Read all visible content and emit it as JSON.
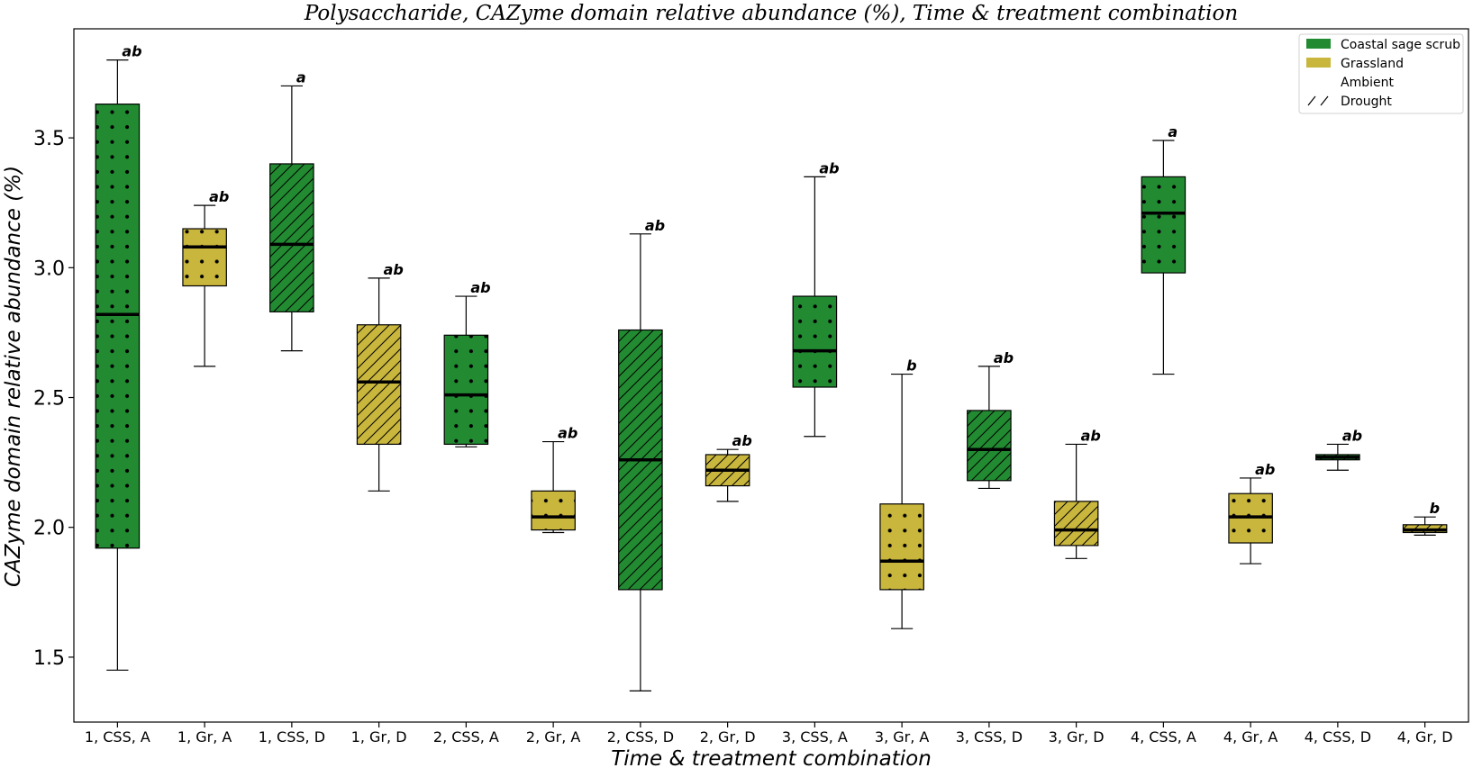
{
  "chart_data": {
    "type": "box",
    "title": "Polysaccharide, CAZyme domain relative abundance (%), Time & treatment combination",
    "xlabel": "Time & treatment combination",
    "ylabel": "CAZyme domain relative abundance (%)",
    "ylim": [
      1.25,
      3.92
    ],
    "yticks": [
      1.5,
      2.0,
      2.5,
      3.0,
      3.5
    ],
    "ytick_labels": [
      "1.5",
      "2.0",
      "2.5",
      "3.0",
      "3.5"
    ],
    "grid": false,
    "legend_position": "top-right",
    "legend": [
      {
        "label": "Coastal sage scrub",
        "kind": "fill",
        "color": "#228b32"
      },
      {
        "label": "Grassland",
        "kind": "fill",
        "color": "#c9b63d"
      },
      {
        "label": "Ambient",
        "kind": "none"
      },
      {
        "label": "Drought",
        "kind": "hatch"
      }
    ],
    "colors": {
      "css": "#228b32",
      "gr": "#c9b63d"
    },
    "categories": [
      "1, CSS, A",
      "1, Gr, A",
      "1, CSS, D",
      "1, Gr, D",
      "2, CSS, A",
      "2, Gr, A",
      "2, CSS, D",
      "2, Gr, D",
      "3, CSS, A",
      "3, Gr, A",
      "3, CSS, D",
      "3, Gr, D",
      "4, CSS, A",
      "4, Gr, A",
      "4, CSS, D",
      "4, Gr, D"
    ],
    "boxes": [
      {
        "vegetation": "css",
        "treatment": "ambient",
        "min": 1.45,
        "q1": 1.92,
        "median": 2.82,
        "q3": 3.63,
        "max": 3.8,
        "letter": "ab"
      },
      {
        "vegetation": "gr",
        "treatment": "ambient",
        "min": 2.62,
        "q1": 2.93,
        "median": 3.08,
        "q3": 3.15,
        "max": 3.24,
        "letter": "ab"
      },
      {
        "vegetation": "css",
        "treatment": "drought",
        "min": 2.68,
        "q1": 2.83,
        "median": 3.09,
        "q3": 3.4,
        "max": 3.7,
        "letter": "a"
      },
      {
        "vegetation": "gr",
        "treatment": "drought",
        "min": 2.14,
        "q1": 2.32,
        "median": 2.56,
        "q3": 2.78,
        "max": 2.96,
        "letter": "ab"
      },
      {
        "vegetation": "css",
        "treatment": "ambient",
        "min": 2.31,
        "q1": 2.32,
        "median": 2.51,
        "q3": 2.74,
        "max": 2.89,
        "letter": "ab"
      },
      {
        "vegetation": "gr",
        "treatment": "ambient",
        "min": 1.98,
        "q1": 1.99,
        "median": 2.04,
        "q3": 2.14,
        "max": 2.33,
        "letter": "ab"
      },
      {
        "vegetation": "css",
        "treatment": "drought",
        "min": 1.37,
        "q1": 1.76,
        "median": 2.26,
        "q3": 2.76,
        "max": 3.13,
        "letter": "ab"
      },
      {
        "vegetation": "gr",
        "treatment": "drought",
        "min": 2.1,
        "q1": 2.16,
        "median": 2.22,
        "q3": 2.28,
        "max": 2.3,
        "letter": "ab"
      },
      {
        "vegetation": "css",
        "treatment": "ambient",
        "min": 2.35,
        "q1": 2.54,
        "median": 2.68,
        "q3": 2.89,
        "max": 3.35,
        "letter": "ab"
      },
      {
        "vegetation": "gr",
        "treatment": "ambient",
        "min": 1.61,
        "q1": 1.76,
        "median": 1.87,
        "q3": 2.09,
        "max": 2.59,
        "letter": "b"
      },
      {
        "vegetation": "css",
        "treatment": "drought",
        "min": 2.15,
        "q1": 2.18,
        "median": 2.3,
        "q3": 2.45,
        "max": 2.62,
        "letter": "ab"
      },
      {
        "vegetation": "gr",
        "treatment": "drought",
        "min": 1.88,
        "q1": 1.93,
        "median": 1.99,
        "q3": 2.1,
        "max": 2.32,
        "letter": "ab"
      },
      {
        "vegetation": "css",
        "treatment": "ambient",
        "min": 2.59,
        "q1": 2.98,
        "median": 3.21,
        "q3": 3.35,
        "max": 3.49,
        "letter": "a"
      },
      {
        "vegetation": "gr",
        "treatment": "ambient",
        "min": 1.86,
        "q1": 1.94,
        "median": 2.04,
        "q3": 2.13,
        "max": 2.19,
        "letter": "ab"
      },
      {
        "vegetation": "css",
        "treatment": "drought",
        "min": 2.22,
        "q1": 2.26,
        "median": 2.27,
        "q3": 2.28,
        "max": 2.32,
        "letter": "ab"
      },
      {
        "vegetation": "gr",
        "treatment": "drought",
        "min": 1.97,
        "q1": 1.98,
        "median": 1.99,
        "q3": 2.01,
        "max": 2.04,
        "letter": "b"
      }
    ]
  }
}
